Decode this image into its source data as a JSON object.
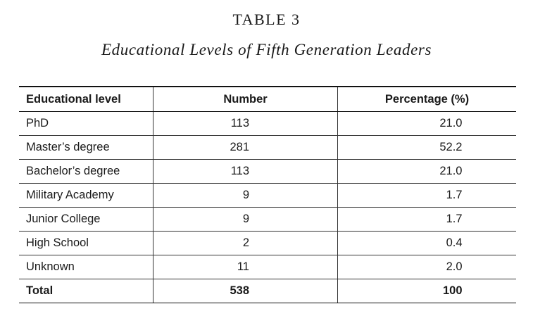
{
  "table_number": "TABLE 3",
  "caption": "Educational Levels of Fifth Generation Leaders",
  "columns": [
    "Educational level",
    "Number",
    "Percentage (%)"
  ],
  "rows": [
    {
      "level": "PhD",
      "number": "113",
      "percentage": "21.0"
    },
    {
      "level": "Master’s degree",
      "number": "281",
      "percentage": "52.2"
    },
    {
      "level": "Bachelor’s degree",
      "number": "113",
      "percentage": "21.0"
    },
    {
      "level": "Military Academy",
      "number": "9",
      "percentage": "1.7"
    },
    {
      "level": "Junior College",
      "number": "9",
      "percentage": "1.7"
    },
    {
      "level": "High School",
      "number": "2",
      "percentage": "0.4"
    },
    {
      "level": "Unknown",
      "number": "11",
      "percentage": "2.0"
    }
  ],
  "total": {
    "level": "Total",
    "number": "538",
    "percentage": "100"
  }
}
